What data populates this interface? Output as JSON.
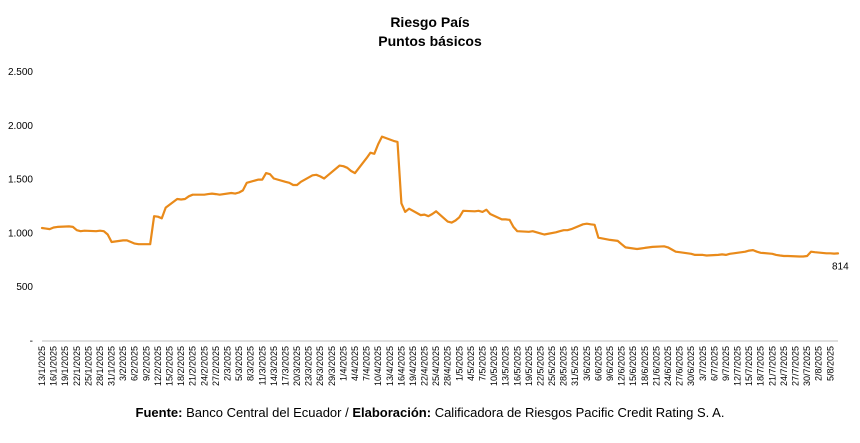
{
  "chart_data": {
    "type": "line",
    "title": "Riesgo País",
    "subtitle": "Puntos básicos",
    "ylim": [
      0,
      2500
    ],
    "yticks": [
      {
        "value": 0,
        "label": "-"
      },
      {
        "value": 500,
        "label": "500"
      },
      {
        "value": 1000,
        "label": "1.000"
      },
      {
        "value": 1500,
        "label": "1.500"
      },
      {
        "value": 2000,
        "label": "2.000"
      },
      {
        "value": 2500,
        "label": "2.500"
      }
    ],
    "grid": false,
    "color": "#E98A1A",
    "x_start": "13/1/2025",
    "x_end": "7/8/2025",
    "xtick_labels": [
      "13/1/2025",
      "16/1/2025",
      "19/1/2025",
      "22/1/2025",
      "25/1/2025",
      "28/1/2025",
      "31/1/2025",
      "3/2/2025",
      "6/2/2025",
      "9/2/2025",
      "12/2/2025",
      "15/2/2025",
      "18/2/2025",
      "21/2/2025",
      "24/2/2025",
      "27/2/2025",
      "2/3/2025",
      "5/3/2025",
      "8/3/2025",
      "11/3/2025",
      "14/3/2025",
      "17/3/2025",
      "20/3/2025",
      "23/3/2025",
      "26/3/2025",
      "29/3/2025",
      "1/4/2025",
      "4/4/2025",
      "7/4/2025",
      "10/4/2025",
      "13/4/2025",
      "16/4/2025",
      "19/4/2025",
      "22/4/2025",
      "25/4/2025",
      "28/4/2025",
      "1/5/2025",
      "4/5/2025",
      "7/5/2025",
      "10/5/2025",
      "13/5/2025",
      "16/5/2025",
      "19/5/2025",
      "22/5/2025",
      "25/5/2025",
      "28/5/2025",
      "31/5/2025",
      "3/6/2025",
      "6/6/2025",
      "9/6/2025",
      "12/6/2025",
      "15/6/2025",
      "18/6/2025",
      "21/6/2025",
      "24/6/2025",
      "27/6/2025",
      "30/6/2025",
      "3/7/2025",
      "6/7/2025",
      "9/7/2025",
      "12/7/2025",
      "15/7/2025",
      "18/7/2025",
      "21/7/2025",
      "24/7/2025",
      "27/7/2025",
      "30/7/2025",
      "2/8/2025",
      "5/8/2025"
    ],
    "series": [
      {
        "points": [
          [
            "13/1/2025",
            1050
          ],
          [
            "14/1/2025",
            1045
          ],
          [
            "15/1/2025",
            1040
          ],
          [
            "16/1/2025",
            1055
          ],
          [
            "17/1/2025",
            1060
          ],
          [
            "20/1/2025",
            1065
          ],
          [
            "21/1/2025",
            1060
          ],
          [
            "22/1/2025",
            1030
          ],
          [
            "23/1/2025",
            1020
          ],
          [
            "24/1/2025",
            1025
          ],
          [
            "27/1/2025",
            1020
          ],
          [
            "28/1/2025",
            1025
          ],
          [
            "29/1/2025",
            1020
          ],
          [
            "30/1/2025",
            990
          ],
          [
            "31/1/2025",
            920
          ],
          [
            "3/2/2025",
            935
          ],
          [
            "4/2/2025",
            935
          ],
          [
            "5/2/2025",
            920
          ],
          [
            "6/2/2025",
            905
          ],
          [
            "7/2/2025",
            900
          ],
          [
            "10/2/2025",
            900
          ],
          [
            "11/2/2025",
            1160
          ],
          [
            "12/2/2025",
            1155
          ],
          [
            "13/2/2025",
            1140
          ],
          [
            "14/2/2025",
            1240
          ],
          [
            "17/2/2025",
            1320
          ],
          [
            "18/2/2025",
            1315
          ],
          [
            "19/2/2025",
            1320
          ],
          [
            "20/2/2025",
            1345
          ],
          [
            "21/2/2025",
            1360
          ],
          [
            "24/2/2025",
            1360
          ],
          [
            "25/2/2025",
            1365
          ],
          [
            "26/2/2025",
            1370
          ],
          [
            "27/2/2025",
            1365
          ],
          [
            "28/2/2025",
            1360
          ],
          [
            "3/3/2025",
            1375
          ],
          [
            "4/3/2025",
            1370
          ],
          [
            "5/3/2025",
            1380
          ],
          [
            "6/3/2025",
            1400
          ],
          [
            "7/3/2025",
            1470
          ],
          [
            "10/3/2025",
            1500
          ],
          [
            "11/3/2025",
            1500
          ],
          [
            "12/3/2025",
            1560
          ],
          [
            "13/3/2025",
            1550
          ],
          [
            "14/3/2025",
            1510
          ],
          [
            "17/3/2025",
            1480
          ],
          [
            "18/3/2025",
            1470
          ],
          [
            "19/3/2025",
            1450
          ],
          [
            "20/3/2025",
            1450
          ],
          [
            "21/3/2025",
            1480
          ],
          [
            "24/3/2025",
            1540
          ],
          [
            "25/3/2025",
            1545
          ],
          [
            "26/3/2025",
            1530
          ],
          [
            "27/3/2025",
            1510
          ],
          [
            "28/3/2025",
            1540
          ],
          [
            "31/3/2025",
            1630
          ],
          [
            "1/4/2025",
            1625
          ],
          [
            "2/4/2025",
            1610
          ],
          [
            "3/4/2025",
            1580
          ],
          [
            "4/4/2025",
            1560
          ],
          [
            "7/4/2025",
            1700
          ],
          [
            "8/4/2025",
            1750
          ],
          [
            "9/4/2025",
            1740
          ],
          [
            "10/4/2025",
            1830
          ],
          [
            "11/4/2025",
            1900
          ],
          [
            "14/4/2025",
            1860
          ],
          [
            "15/4/2025",
            1850
          ],
          [
            "16/4/2025",
            1280
          ],
          [
            "17/4/2025",
            1200
          ],
          [
            "18/4/2025",
            1230
          ],
          [
            "21/4/2025",
            1170
          ],
          [
            "22/4/2025",
            1175
          ],
          [
            "23/4/2025",
            1160
          ],
          [
            "24/4/2025",
            1180
          ],
          [
            "25/4/2025",
            1205
          ],
          [
            "28/4/2025",
            1110
          ],
          [
            "29/4/2025",
            1100
          ],
          [
            "30/4/2025",
            1120
          ],
          [
            "1/5/2025",
            1150
          ],
          [
            "2/5/2025",
            1210
          ],
          [
            "5/5/2025",
            1205
          ],
          [
            "6/5/2025",
            1210
          ],
          [
            "7/5/2025",
            1200
          ],
          [
            "8/5/2025",
            1220
          ],
          [
            "9/5/2025",
            1180
          ],
          [
            "12/5/2025",
            1130
          ],
          [
            "13/5/2025",
            1130
          ],
          [
            "14/5/2025",
            1125
          ],
          [
            "15/5/2025",
            1060
          ],
          [
            "16/5/2025",
            1020
          ],
          [
            "19/5/2025",
            1015
          ],
          [
            "20/5/2025",
            1020
          ],
          [
            "21/5/2025",
            1010
          ],
          [
            "22/5/2025",
            1000
          ],
          [
            "23/5/2025",
            990
          ],
          [
            "26/5/2025",
            1010
          ],
          [
            "27/5/2025",
            1020
          ],
          [
            "28/5/2025",
            1030
          ],
          [
            "29/5/2025",
            1030
          ],
          [
            "30/5/2025",
            1040
          ],
          [
            "2/6/2025",
            1085
          ],
          [
            "3/6/2025",
            1090
          ],
          [
            "4/6/2025",
            1085
          ],
          [
            "5/6/2025",
            1080
          ],
          [
            "6/6/2025",
            960
          ],
          [
            "9/6/2025",
            940
          ],
          [
            "10/6/2025",
            935
          ],
          [
            "11/6/2025",
            930
          ],
          [
            "12/6/2025",
            900
          ],
          [
            "13/6/2025",
            870
          ],
          [
            "16/6/2025",
            855
          ],
          [
            "17/6/2025",
            860
          ],
          [
            "18/6/2025",
            865
          ],
          [
            "19/6/2025",
            870
          ],
          [
            "20/6/2025",
            875
          ],
          [
            "23/6/2025",
            880
          ],
          [
            "24/6/2025",
            870
          ],
          [
            "25/6/2025",
            850
          ],
          [
            "26/6/2025",
            830
          ],
          [
            "27/6/2025",
            825
          ],
          [
            "30/6/2025",
            810
          ],
          [
            "1/7/2025",
            800
          ],
          [
            "2/7/2025",
            800
          ],
          [
            "3/7/2025",
            800
          ],
          [
            "4/7/2025",
            795
          ],
          [
            "7/7/2025",
            800
          ],
          [
            "8/7/2025",
            805
          ],
          [
            "9/7/2025",
            800
          ],
          [
            "10/7/2025",
            810
          ],
          [
            "11/7/2025",
            815
          ],
          [
            "14/7/2025",
            830
          ],
          [
            "15/7/2025",
            840
          ],
          [
            "16/7/2025",
            845
          ],
          [
            "17/7/2025",
            830
          ],
          [
            "18/7/2025",
            820
          ],
          [
            "21/7/2025",
            810
          ],
          [
            "22/7/2025",
            800
          ],
          [
            "23/7/2025",
            795
          ],
          [
            "24/7/2025",
            790
          ],
          [
            "25/7/2025",
            790
          ],
          [
            "28/7/2025",
            785
          ],
          [
            "29/7/2025",
            785
          ],
          [
            "30/7/2025",
            790
          ],
          [
            "31/7/2025",
            830
          ],
          [
            "1/8/2025",
            825
          ],
          [
            "4/8/2025",
            815
          ],
          [
            "5/8/2025",
            815
          ],
          [
            "6/8/2025",
            812
          ],
          [
            "7/8/2025",
            814
          ]
        ]
      }
    ],
    "annotations": [
      {
        "x": "7/8/2025",
        "y": 814,
        "text": "814"
      }
    ]
  },
  "footer": {
    "fuente_label": "Fuente:",
    "fuente_text": " Banco Central del Ecuador / ",
    "elaboracion_label": "Elaboración:",
    "elaboracion_text": " Calificadora de Riesgos Pacific Credit Rating S. A."
  }
}
